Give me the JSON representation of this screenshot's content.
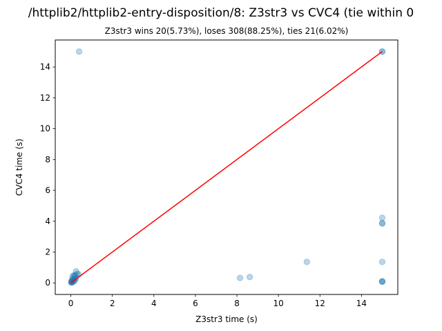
{
  "chart_data": {
    "type": "scatter",
    "title": "/httplib2/httplib2-entry-disposition/8: Z3str3 vs CVC4 (tie within 0",
    "subtitle": "Z3str3 wins 20(5.73%), loses 308(88.25%), ties 21(6.02%)",
    "xlabel": "Z3str3 time (s)",
    "ylabel": "CVC4 time (s)",
    "xlim": [
      -0.75,
      15.75
    ],
    "ylim": [
      -0.75,
      15.75
    ],
    "xticks": [
      0,
      2,
      4,
      6,
      8,
      10,
      12,
      14
    ],
    "yticks": [
      0,
      2,
      4,
      6,
      8,
      10,
      12,
      14
    ],
    "grid": false,
    "point_color": "#1f77b4",
    "point_opacity": 0.3,
    "line_color": "#ff0000",
    "diagonal": {
      "x": [
        0,
        15
      ],
      "y": [
        0,
        15
      ]
    },
    "points": [
      {
        "x": 0.02,
        "y": 0.02
      },
      {
        "x": 0.03,
        "y": 0.05
      },
      {
        "x": 0.05,
        "y": 0.03
      },
      {
        "x": 0.04,
        "y": 0.08
      },
      {
        "x": 0.06,
        "y": 0.1
      },
      {
        "x": 0.08,
        "y": 0.06
      },
      {
        "x": 0.1,
        "y": 0.12
      },
      {
        "x": 0.12,
        "y": 0.15
      },
      {
        "x": 0.05,
        "y": 0.18
      },
      {
        "x": 0.15,
        "y": 0.2
      },
      {
        "x": 0.18,
        "y": 0.1
      },
      {
        "x": 0.2,
        "y": 0.25
      },
      {
        "x": 0.08,
        "y": 0.3
      },
      {
        "x": 0.25,
        "y": 0.3
      },
      {
        "x": 0.1,
        "y": 0.45
      },
      {
        "x": 0.15,
        "y": 0.48
      },
      {
        "x": 0.2,
        "y": 0.42
      },
      {
        "x": 0.22,
        "y": 0.5
      },
      {
        "x": 0.3,
        "y": 0.6
      },
      {
        "x": 0.38,
        "y": 0.55
      },
      {
        "x": 0.25,
        "y": 0.75
      },
      {
        "x": 0.4,
        "y": 15.0
      },
      {
        "x": 8.15,
        "y": 0.32
      },
      {
        "x": 8.62,
        "y": 0.38
      },
      {
        "x": 11.37,
        "y": 1.36
      },
      {
        "x": 15.0,
        "y": 15.0
      },
      {
        "x": 15.0,
        "y": 15.0
      },
      {
        "x": 15.0,
        "y": 4.22
      },
      {
        "x": 15.0,
        "y": 3.88
      },
      {
        "x": 15.0,
        "y": 3.85
      },
      {
        "x": 15.0,
        "y": 1.36
      },
      {
        "x": 15.0,
        "y": 0.1
      },
      {
        "x": 15.0,
        "y": 0.09
      },
      {
        "x": 15.0,
        "y": 0.08
      }
    ]
  }
}
